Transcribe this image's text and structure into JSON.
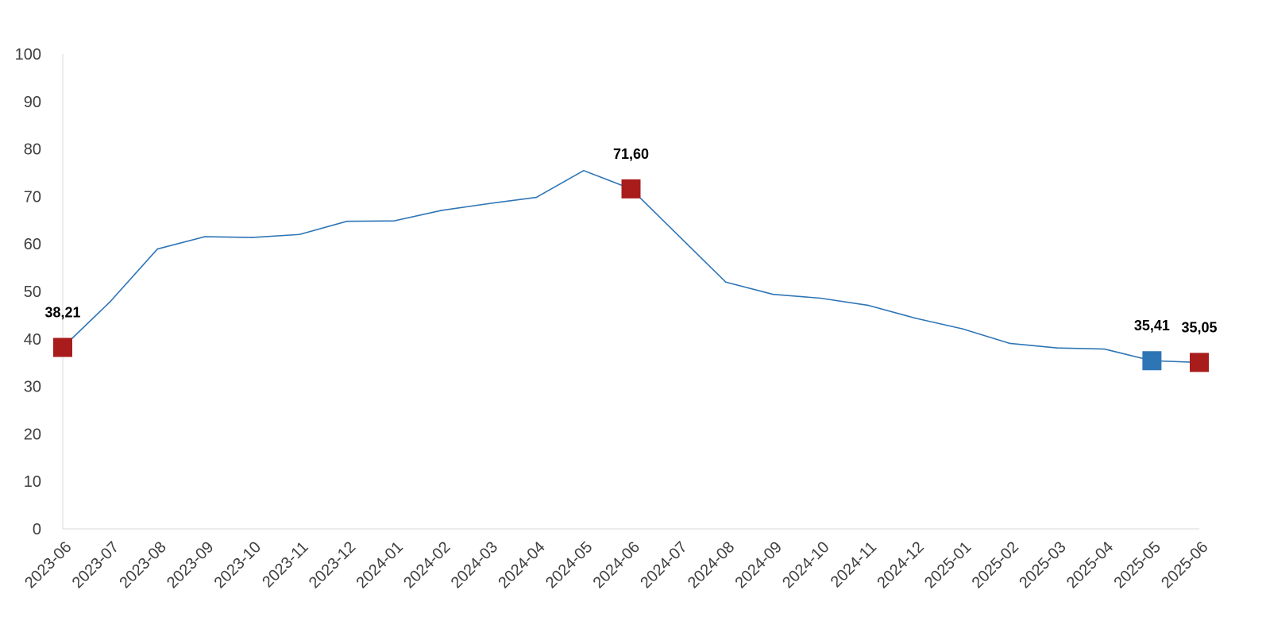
{
  "chart_data": {
    "type": "line",
    "title": "",
    "xlabel": "",
    "ylabel": "",
    "ylim": [
      0,
      100
    ],
    "yticks": [
      "0",
      "10",
      "20",
      "30",
      "40",
      "50",
      "60",
      "70",
      "80",
      "90",
      "100"
    ],
    "grid": false,
    "legend": "none",
    "line_color": "#2E75B6",
    "categories": [
      "2023-06",
      "2023-07",
      "2023-08",
      "2023-09",
      "2023-10",
      "2023-11",
      "2023-12",
      "2024-01",
      "2024-02",
      "2024-03",
      "2024-04",
      "2024-05",
      "2024-06",
      "2024-07",
      "2024-08",
      "2024-09",
      "2024-10",
      "2024-11",
      "2024-12",
      "2025-01",
      "2025-02",
      "2025-03",
      "2025-04",
      "2025-05",
      "2025-06"
    ],
    "series": [
      {
        "values": [
          38.21,
          47.83,
          58.94,
          61.53,
          61.36,
          62.0,
          64.77,
          64.86,
          67.07,
          68.5,
          69.8,
          75.45,
          71.6,
          61.78,
          51.97,
          49.38,
          48.58,
          47.09,
          44.38,
          42.12,
          39.05,
          38.1,
          37.86,
          35.41,
          35.05
        ]
      }
    ],
    "highlighted_points": [
      {
        "category": "2023-06",
        "value": 38.21,
        "label": "38,21",
        "color": "#A81C1C"
      },
      {
        "category": "2024-06",
        "value": 71.6,
        "label": "71,60",
        "color": "#A81C1C"
      },
      {
        "category": "2025-05",
        "value": 35.41,
        "label": "35,41",
        "color": "#2E75B6"
      },
      {
        "category": "2025-06",
        "value": 35.05,
        "label": "35,05",
        "color": "#A81C1C"
      }
    ]
  }
}
